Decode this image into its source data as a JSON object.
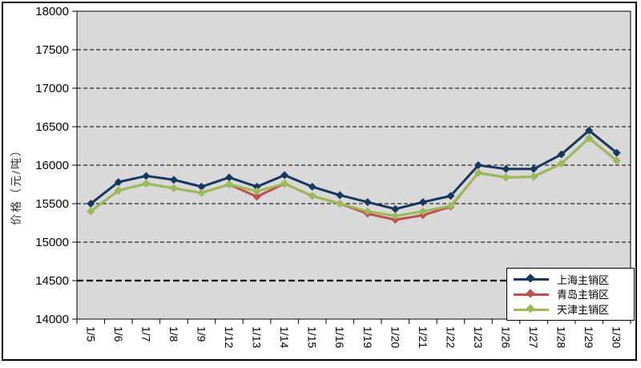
{
  "chart": {
    "background": "#FFFFFF",
    "plot_background": "#D9D9D9",
    "frame_color": "#000000",
    "gridline_color": "#000000"
  },
  "chart_data": {
    "type": "line",
    "title": "",
    "ylabel": "价格（元/吨）",
    "xlabel": "",
    "ylim": [
      14000,
      18000
    ],
    "ytick_step": 500,
    "yticks": [
      "14000",
      "14500",
      "15000",
      "15500",
      "16000",
      "16500",
      "17000",
      "17500",
      "18000"
    ],
    "emphasized_gridline": 14500,
    "grid": "horizontal-dashed",
    "legend_position": "inside-bottom-right",
    "marker": "diamond",
    "categories": [
      "1/5",
      "1/6",
      "1/7",
      "1/8",
      "1/9",
      "1/12",
      "1/13",
      "1/14",
      "1/15",
      "1/16",
      "1/19",
      "1/20",
      "1/21",
      "1/22",
      "1/23",
      "1/26",
      "1/27",
      "1/28",
      "1/29",
      "1/30"
    ],
    "series": [
      {
        "name": "上海主销区",
        "color": "#17375E",
        "values": [
          15500,
          15780,
          15860,
          15810,
          15720,
          15840,
          15720,
          15870,
          15720,
          15610,
          15520,
          15430,
          15520,
          15600,
          16000,
          15950,
          15950,
          16140,
          16450,
          16160
        ]
      },
      {
        "name": "青岛主销区",
        "color": "#C0504D",
        "values": [
          15400,
          15670,
          15760,
          15700,
          15640,
          15750,
          15590,
          15760,
          15600,
          15500,
          15370,
          15290,
          15350,
          15460,
          15900,
          15840,
          15850,
          16020,
          16350,
          16060
        ]
      },
      {
        "name": "天津主销区",
        "color": "#9BBB59",
        "values": [
          15400,
          15670,
          15760,
          15700,
          15640,
          15750,
          15660,
          15760,
          15600,
          15500,
          15400,
          15340,
          15400,
          15470,
          15900,
          15840,
          15850,
          16020,
          16350,
          16060
        ]
      }
    ]
  }
}
